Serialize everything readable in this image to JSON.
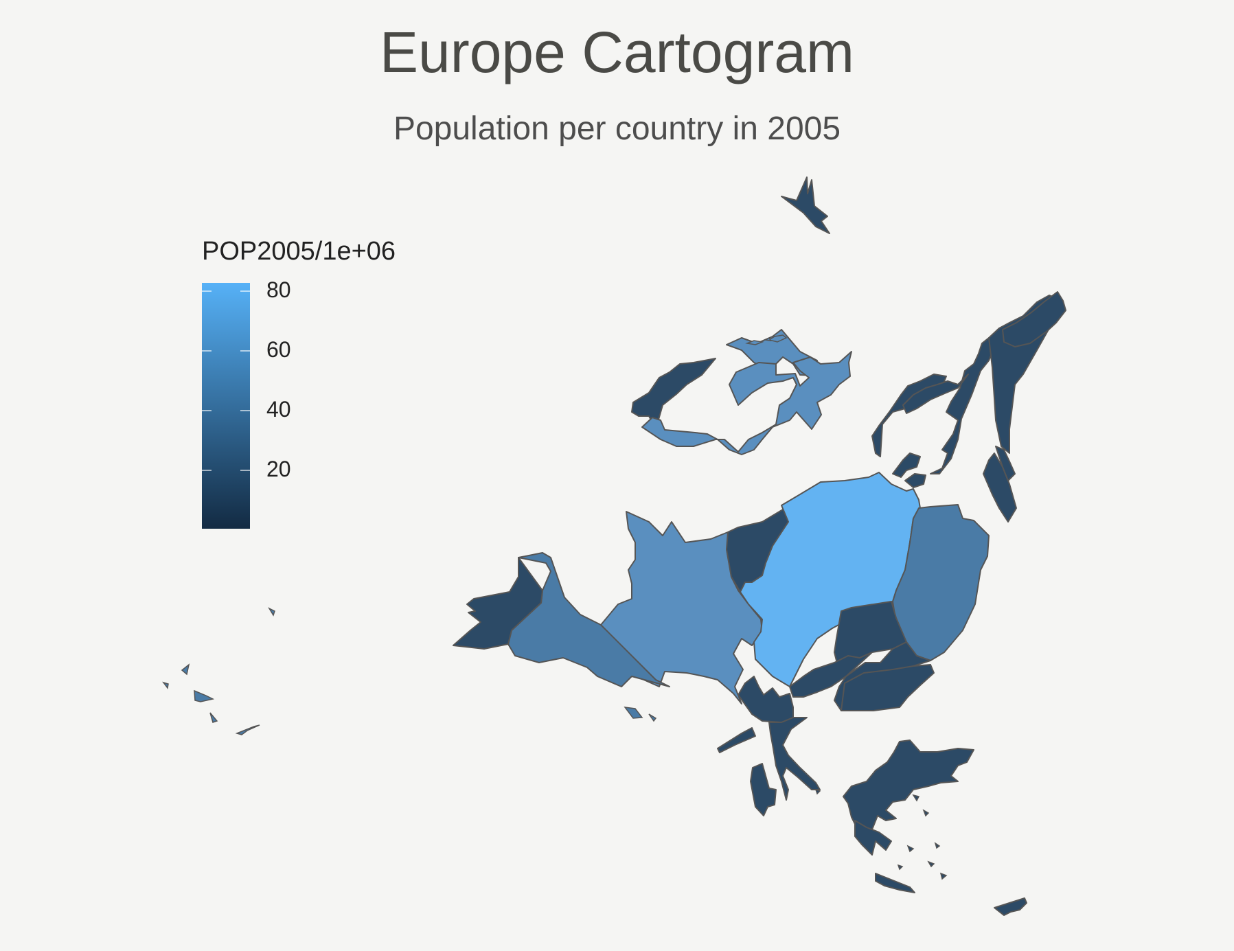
{
  "map": {
    "title": "Europe Cartogram",
    "subtitle": "Population per country in 2005",
    "legend": {
      "title": "POP2005/1e+06",
      "ticks": [
        "80",
        "60",
        "40",
        "20"
      ],
      "tick_values": [
        80,
        60,
        40,
        20
      ],
      "range": [
        0,
        83
      ],
      "colors": {
        "low": "#132b43",
        "high": "#56b1f7"
      }
    },
    "colors": {
      "background": "#f5f5f3",
      "border": "#555555"
    }
  }
}
